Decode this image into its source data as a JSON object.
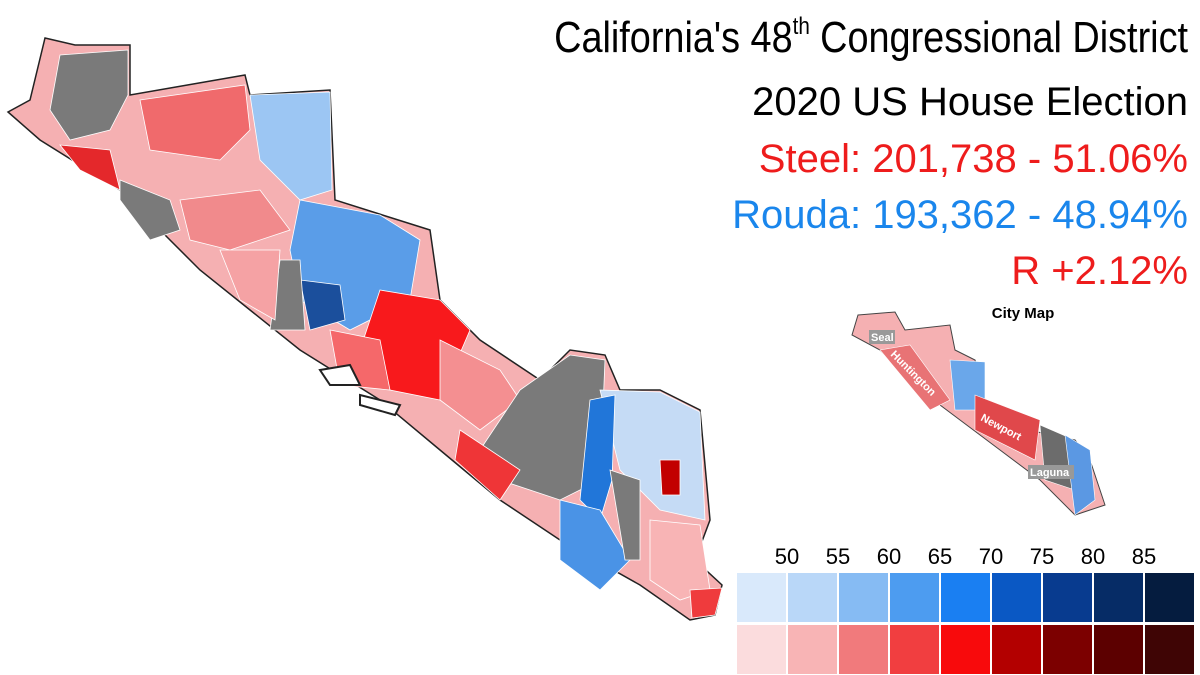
{
  "header": {
    "title_main": "California's 48",
    "title_sup": "th",
    "title_rest": "Congressional District",
    "subtitle": "2020 US House Election"
  },
  "results": {
    "steel": {
      "text": "Steel: 201,738 - 51.06%",
      "color": "#ee1c1c"
    },
    "rouda": {
      "text": "Rouda: 193,362 - 48.94%",
      "color": "#1a86ec"
    },
    "margin": {
      "text": "R +2.12%",
      "color": "#ee1c1c"
    }
  },
  "inset": {
    "title": "City Map",
    "cities": [
      "Seal",
      "Huntington",
      "Newport",
      "Laguna"
    ]
  },
  "legend": {
    "ticks": [
      50,
      55,
      60,
      65,
      70,
      75,
      80,
      85
    ],
    "dem_colors": [
      "#d9e9fb",
      "#b9d7f8",
      "#86bbf3",
      "#4d9cf0",
      "#1a7ff2",
      "#0a58c4",
      "#083b8f",
      "#062c66",
      "#051c3f"
    ],
    "rep_colors": [
      "#fbdcdd",
      "#f8b4b5",
      "#f17a7c",
      "#f13e40",
      "#f80a0c",
      "#b30000",
      "#7c0000",
      "#5c0000",
      "#3f0505"
    ]
  }
}
